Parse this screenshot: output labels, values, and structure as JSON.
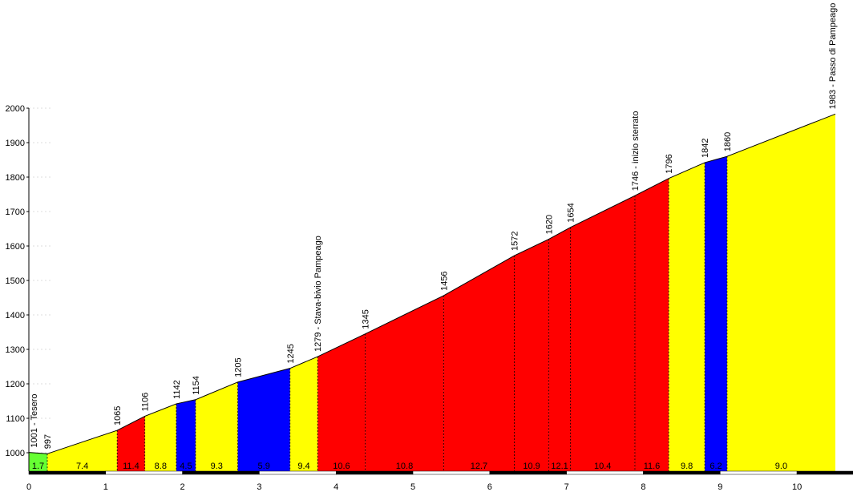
{
  "chart_data": {
    "type": "area",
    "title": "",
    "xlabel": "",
    "ylabel": "",
    "xlim": [
      0,
      10.5
    ],
    "ylim": [
      950,
      2000
    ],
    "x_ticks": [
      0,
      1,
      2,
      3,
      4,
      5,
      6,
      7,
      8,
      9,
      10
    ],
    "y_ticks": [
      1000,
      1100,
      1200,
      1300,
      1400,
      1500,
      1600,
      1700,
      1800,
      1900,
      2000
    ],
    "profile_points": [
      {
        "x": 0.0,
        "y": 1001,
        "label": "1001 - Tesero"
      },
      {
        "x": 0.24,
        "y": 997,
        "label": "997"
      },
      {
        "x": 1.15,
        "y": 1065,
        "label": "1065"
      },
      {
        "x": 1.51,
        "y": 1106,
        "label": "1106"
      },
      {
        "x": 1.92,
        "y": 1142,
        "label": "1142"
      },
      {
        "x": 2.17,
        "y": 1154,
        "label": "1154"
      },
      {
        "x": 2.72,
        "y": 1205,
        "label": "1205"
      },
      {
        "x": 3.4,
        "y": 1245,
        "label": "1245"
      },
      {
        "x": 3.76,
        "y": 1279,
        "label": "1279 - Stava-bivio Pampeago"
      },
      {
        "x": 4.38,
        "y": 1345,
        "label": "1345"
      },
      {
        "x": 5.4,
        "y": 1456,
        "label": "1456"
      },
      {
        "x": 6.32,
        "y": 1572,
        "label": "1572"
      },
      {
        "x": 6.77,
        "y": 1620,
        "label": "1620"
      },
      {
        "x": 7.05,
        "y": 1654,
        "label": "1654"
      },
      {
        "x": 7.89,
        "y": 1746,
        "label": "1746 - inizio sterrato"
      },
      {
        "x": 8.33,
        "y": 1796,
        "label": "1796"
      },
      {
        "x": 8.8,
        "y": 1842,
        "label": "1842"
      },
      {
        "x": 9.09,
        "y": 1860,
        "label": "1860"
      },
      {
        "x": 10.5,
        "y": 1983,
        "label": "1983 - Passo di Pampeago"
      }
    ],
    "segments": [
      {
        "gradient": "1.7",
        "color": "#66ff33"
      },
      {
        "gradient": "7.4",
        "color": "#ffff00"
      },
      {
        "gradient": "11.4",
        "color": "#ff0000"
      },
      {
        "gradient": "8.8",
        "color": "#ffff00"
      },
      {
        "gradient": "4.5",
        "color": "#0000ff"
      },
      {
        "gradient": "9.3",
        "color": "#ffff00"
      },
      {
        "gradient": "5.9",
        "color": "#0000ff"
      },
      {
        "gradient": "9.4",
        "color": "#ffff00"
      },
      {
        "gradient": "10.6",
        "color": "#ff0000"
      },
      {
        "gradient": "10.8",
        "color": "#ff0000"
      },
      {
        "gradient": "12.7",
        "color": "#ff0000"
      },
      {
        "gradient": "10.9",
        "color": "#ff0000"
      },
      {
        "gradient": "12.1",
        "color": "#ff0000"
      },
      {
        "gradient": "10.4",
        "color": "#ff0000"
      },
      {
        "gradient": "11.6",
        "color": "#ff0000"
      },
      {
        "gradient": "9.8",
        "color": "#ffff00"
      },
      {
        "gradient": "6.2",
        "color": "#0000ff"
      },
      {
        "gradient": "9.0",
        "color": "#ffff00"
      }
    ]
  }
}
